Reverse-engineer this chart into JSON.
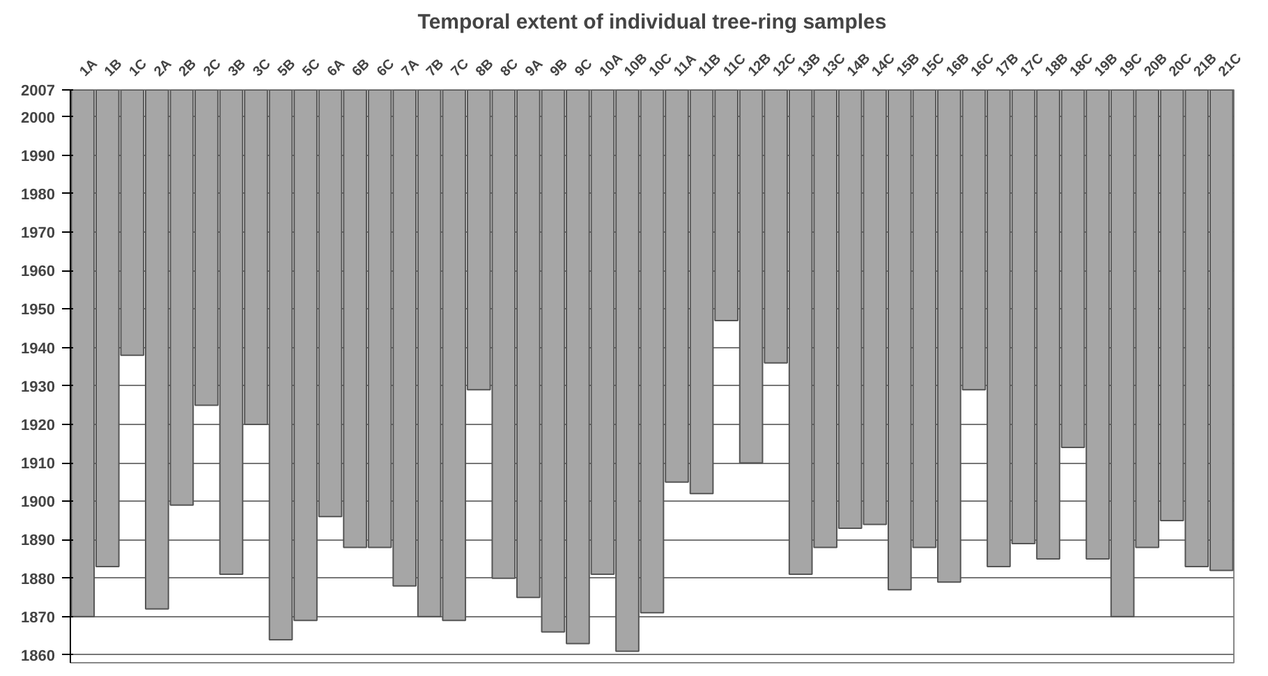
{
  "chart_data": {
    "type": "bar",
    "title": "Temporal extent of individual tree-ring samples",
    "categories": [
      "1A",
      "1B",
      "1C",
      "2A",
      "2B",
      "2C",
      "3B",
      "3C",
      "5B",
      "5C",
      "6A",
      "6B",
      "6C",
      "7A",
      "7B",
      "7C",
      "8B",
      "8C",
      "9A",
      "9B",
      "9C",
      "10A",
      "10B",
      "10C",
      "11A",
      "11B",
      "11C",
      "12B",
      "12C",
      "13B",
      "13C",
      "14B",
      "14C",
      "15B",
      "15C",
      "16B",
      "16C",
      "17B",
      "17C",
      "18B",
      "18C",
      "19B",
      "19C",
      "20B",
      "20C",
      "21B",
      "21C"
    ],
    "base": [
      1870,
      1883,
      1938,
      1872,
      1899,
      1925,
      1881,
      1920,
      1864,
      1869,
      1896,
      1888,
      1888,
      1878,
      1870,
      1869,
      1929,
      1880,
      1875,
      1866,
      1863,
      1881,
      1861,
      1871,
      1905,
      1902,
      1947,
      1910,
      1936,
      1881,
      1888,
      1893,
      1894,
      1877,
      1888,
      1879,
      1929,
      1883,
      1889,
      1885,
      1914,
      1885,
      1870,
      1888,
      1895,
      1883,
      1882
    ],
    "values": [
      137,
      124,
      69,
      135,
      108,
      82,
      126,
      87,
      143,
      138,
      111,
      119,
      119,
      129,
      137,
      138,
      78,
      127,
      132,
      141,
      144,
      126,
      146,
      136,
      102,
      105,
      60,
      97,
      71,
      126,
      119,
      114,
      113,
      130,
      119,
      128,
      78,
      124,
      118,
      122,
      93,
      122,
      137,
      119,
      112,
      124,
      125
    ],
    "color": "#a6a6a6",
    "ylim": [
      1858,
      2007
    ],
    "yticks": [
      1860,
      1870,
      1880,
      1890,
      1900,
      1910,
      1920,
      1930,
      1940,
      1950,
      1960,
      1970,
      1980,
      1990,
      2000,
      2007
    ],
    "grid": "y"
  }
}
